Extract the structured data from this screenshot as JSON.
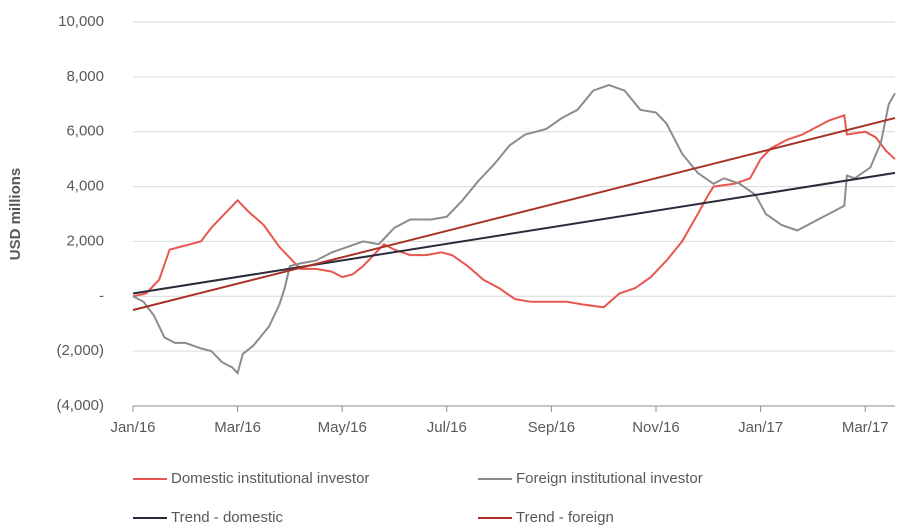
{
  "chart_data": {
    "type": "line",
    "y_label": "USD millions",
    "xlim": [
      0,
      14.57
    ],
    "xticks": [
      {
        "value": 0,
        "label": "Jan/16"
      },
      {
        "value": 2,
        "label": "Mar/16"
      },
      {
        "value": 4,
        "label": "May/16"
      },
      {
        "value": 6,
        "label": "Jul/16"
      },
      {
        "value": 8,
        "label": "Sep/16"
      },
      {
        "value": 10,
        "label": "Nov/16"
      },
      {
        "value": 12,
        "label": "Jan/17"
      },
      {
        "value": 14,
        "label": "Mar/17"
      }
    ],
    "ylim": [
      -4000,
      10000
    ],
    "yticks": [
      {
        "value": -4000,
        "label": "(4,000)"
      },
      {
        "value": -2000,
        "label": "(2,000)"
      },
      {
        "value": 0,
        "label": "-"
      },
      {
        "value": 2000,
        "label": "2,000"
      },
      {
        "value": 4000,
        "label": "4,000"
      },
      {
        "value": 6000,
        "label": "6,000"
      },
      {
        "value": 8000,
        "label": "8,000"
      },
      {
        "value": 10000,
        "label": "10,000"
      }
    ],
    "grid": true,
    "legend_position": "bottom",
    "series": [
      {
        "name": "Domestic institutional investor",
        "color": "#e8574f",
        "x": [
          0,
          0.25,
          0.5,
          0.7,
          0.9,
          1.1,
          1.3,
          1.5,
          1.7,
          1.9,
          2.0,
          2.2,
          2.5,
          2.8,
          3.0,
          3.2,
          3.5,
          3.8,
          4.0,
          4.2,
          4.4,
          4.6,
          4.8,
          5.0,
          5.3,
          5.6,
          5.9,
          6.1,
          6.4,
          6.7,
          7.0,
          7.3,
          7.6,
          8.0,
          8.3,
          8.6,
          9.0,
          9.3,
          9.6,
          9.9,
          10.2,
          10.5,
          10.8,
          11.0,
          11.1,
          11.5,
          11.8,
          12.0,
          12.2,
          12.5,
          12.8,
          13.1,
          13.3,
          13.6,
          13.65,
          14.0,
          14.2,
          14.4,
          14.57
        ],
        "values": [
          0,
          100,
          600,
          1700,
          1800,
          1900,
          2000,
          2500,
          2900,
          3300,
          3500,
          3100,
          2600,
          1800,
          1400,
          1000,
          1000,
          900,
          700,
          800,
          1100,
          1500,
          1900,
          1700,
          1500,
          1500,
          1600,
          1500,
          1100,
          600,
          300,
          -100,
          -200,
          -200,
          -200,
          -300,
          -400,
          100,
          300,
          700,
          1300,
          2000,
          3000,
          3700,
          4000,
          4100,
          4300,
          5000,
          5400,
          5700,
          5900,
          6200,
          6400,
          6600,
          5900,
          6000,
          5800,
          5300,
          5000
        ]
      },
      {
        "name": "Foreign institutional investor",
        "color": "#8c8c8c",
        "x": [
          0,
          0.2,
          0.4,
          0.6,
          0.8,
          1.0,
          1.3,
          1.5,
          1.7,
          1.9,
          2.0,
          2.1,
          2.3,
          2.6,
          2.8,
          2.9,
          3.0,
          3.2,
          3.5,
          3.8,
          4.1,
          4.4,
          4.7,
          5.0,
          5.3,
          5.7,
          6.0,
          6.3,
          6.6,
          6.9,
          7.2,
          7.5,
          7.9,
          8.2,
          8.5,
          8.8,
          9.1,
          9.4,
          9.7,
          10.0,
          10.2,
          10.5,
          10.8,
          11.1,
          11.3,
          11.6,
          11.9,
          12.1,
          12.4,
          12.7,
          13.0,
          13.3,
          13.6,
          13.65,
          13.8,
          14.1,
          14.3,
          14.45,
          14.57
        ],
        "values": [
          0,
          -200,
          -700,
          -1500,
          -1700,
          -1700,
          -1900,
          -2000,
          -2400,
          -2600,
          -2800,
          -2100,
          -1800,
          -1100,
          -300,
          300,
          1100,
          1200,
          1300,
          1600,
          1800,
          2000,
          1900,
          2500,
          2800,
          2800,
          2900,
          3500,
          4200,
          4800,
          5500,
          5900,
          6100,
          6500,
          6800,
          7500,
          7700,
          7500,
          6800,
          6700,
          6300,
          5200,
          4500,
          4100,
          4300,
          4100,
          3700,
          3000,
          2600,
          2400,
          2700,
          3000,
          3300,
          4400,
          4300,
          4700,
          5600,
          7000,
          7400
        ]
      },
      {
        "name": "Trend - domestic",
        "color": "#2b2b3b",
        "x": [
          0,
          14.57
        ],
        "values": [
          100,
          4500
        ]
      },
      {
        "name": "Trend - foreign",
        "color": "#a93226",
        "x": [
          0,
          14.57
        ],
        "values": [
          -500,
          6500
        ]
      }
    ]
  }
}
